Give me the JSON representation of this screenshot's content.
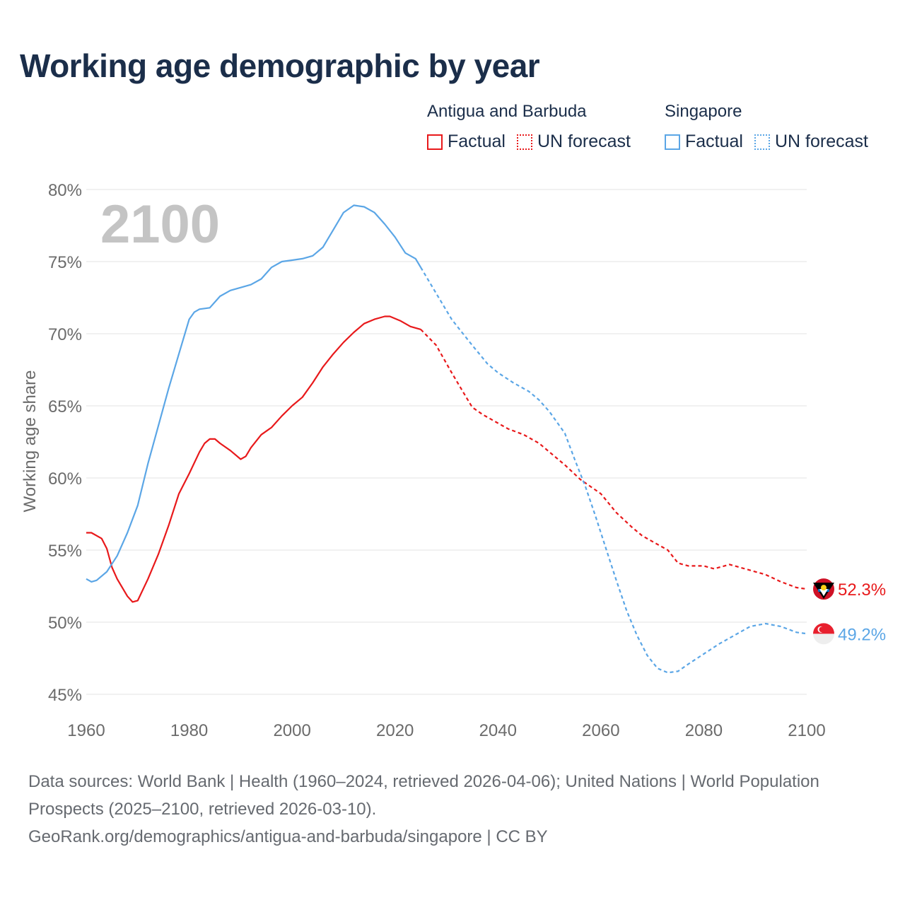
{
  "title": "Working age demographic by year",
  "legend": {
    "groups": [
      {
        "name": "Antigua and Barbuda",
        "factual_label": "Factual",
        "forecast_label": "UN forecast",
        "color": "#e8191b"
      },
      {
        "name": "Singapore",
        "factual_label": "Factual",
        "forecast_label": "UN forecast",
        "color": "#5ba6e6"
      }
    ]
  },
  "year_overlay": "2100",
  "footer": {
    "sources": "Data sources: World Bank | Health (1960–2024, retrieved 2026-04-06); United Nations | World Population Prospects (2025–2100, retrieved 2026-03-10).",
    "attribution": "GeoRank.org/demographics/antigua-and-barbuda/singapore | CC BY"
  },
  "chart_data": {
    "type": "line",
    "title": "Working age demographic by year",
    "xlabel": "",
    "ylabel": "Working age share",
    "xlim": [
      1960,
      2100
    ],
    "ylim": [
      45,
      80
    ],
    "x_ticks": [
      1960,
      1980,
      2000,
      2020,
      2040,
      2060,
      2080,
      2100
    ],
    "y_ticks": [
      45,
      50,
      55,
      60,
      65,
      70,
      75,
      80
    ],
    "y_tick_labels": [
      "45%",
      "50%",
      "55%",
      "60%",
      "65%",
      "70%",
      "75%",
      "80%"
    ],
    "grid": true,
    "factual_end_year": 2025,
    "series": [
      {
        "name": "Antigua and Barbuda",
        "color": "#e8191b",
        "end_label": "52.3%",
        "points": [
          [
            1960,
            56.2
          ],
          [
            1961,
            56.2
          ],
          [
            1963,
            55.8
          ],
          [
            1964,
            55.1
          ],
          [
            1965,
            53.8
          ],
          [
            1966,
            53.0
          ],
          [
            1968,
            51.8
          ],
          [
            1969,
            51.4
          ],
          [
            1970,
            51.5
          ],
          [
            1972,
            53.0
          ],
          [
            1974,
            54.7
          ],
          [
            1976,
            56.7
          ],
          [
            1978,
            58.9
          ],
          [
            1980,
            60.3
          ],
          [
            1982,
            61.8
          ],
          [
            1983,
            62.4
          ],
          [
            1984,
            62.7
          ],
          [
            1985,
            62.7
          ],
          [
            1986,
            62.4
          ],
          [
            1988,
            61.9
          ],
          [
            1990,
            61.3
          ],
          [
            1991,
            61.5
          ],
          [
            1992,
            62.1
          ],
          [
            1994,
            63.0
          ],
          [
            1996,
            63.5
          ],
          [
            1998,
            64.3
          ],
          [
            2000,
            65.0
          ],
          [
            2002,
            65.6
          ],
          [
            2004,
            66.6
          ],
          [
            2006,
            67.7
          ],
          [
            2008,
            68.6
          ],
          [
            2010,
            69.4
          ],
          [
            2012,
            70.1
          ],
          [
            2014,
            70.7
          ],
          [
            2016,
            71.0
          ],
          [
            2018,
            71.2
          ],
          [
            2019,
            71.2
          ],
          [
            2021,
            70.9
          ],
          [
            2023,
            70.5
          ],
          [
            2025,
            70.3
          ],
          [
            2028,
            69.2
          ],
          [
            2031,
            67.3
          ],
          [
            2033,
            66.1
          ],
          [
            2035,
            64.9
          ],
          [
            2037,
            64.4
          ],
          [
            2040,
            63.8
          ],
          [
            2042,
            63.4
          ],
          [
            2045,
            63.0
          ],
          [
            2048,
            62.4
          ],
          [
            2050,
            61.8
          ],
          [
            2053,
            60.9
          ],
          [
            2056,
            59.9
          ],
          [
            2060,
            58.9
          ],
          [
            2063,
            57.6
          ],
          [
            2066,
            56.6
          ],
          [
            2068,
            56.0
          ],
          [
            2070,
            55.6
          ],
          [
            2073,
            55.0
          ],
          [
            2075,
            54.1
          ],
          [
            2077,
            53.9
          ],
          [
            2080,
            53.9
          ],
          [
            2082,
            53.7
          ],
          [
            2085,
            54.0
          ],
          [
            2088,
            53.7
          ],
          [
            2092,
            53.3
          ],
          [
            2095,
            52.8
          ],
          [
            2098,
            52.4
          ],
          [
            2100,
            52.3
          ]
        ]
      },
      {
        "name": "Singapore",
        "color": "#5ba6e6",
        "end_label": "49.2%",
        "points": [
          [
            1960,
            53.0
          ],
          [
            1961,
            52.8
          ],
          [
            1962,
            52.9
          ],
          [
            1964,
            53.5
          ],
          [
            1966,
            54.6
          ],
          [
            1968,
            56.2
          ],
          [
            1970,
            58.1
          ],
          [
            1972,
            61.0
          ],
          [
            1974,
            63.6
          ],
          [
            1976,
            66.2
          ],
          [
            1978,
            68.6
          ],
          [
            1980,
            71.0
          ],
          [
            1981,
            71.5
          ],
          [
            1982,
            71.7
          ],
          [
            1984,
            71.8
          ],
          [
            1985,
            72.2
          ],
          [
            1986,
            72.6
          ],
          [
            1988,
            73.0
          ],
          [
            1990,
            73.2
          ],
          [
            1992,
            73.4
          ],
          [
            1994,
            73.8
          ],
          [
            1996,
            74.6
          ],
          [
            1998,
            75.0
          ],
          [
            2000,
            75.1
          ],
          [
            2002,
            75.2
          ],
          [
            2004,
            75.4
          ],
          [
            2006,
            76.0
          ],
          [
            2008,
            77.2
          ],
          [
            2010,
            78.4
          ],
          [
            2012,
            78.9
          ],
          [
            2014,
            78.8
          ],
          [
            2016,
            78.4
          ],
          [
            2018,
            77.6
          ],
          [
            2020,
            76.7
          ],
          [
            2022,
            75.6
          ],
          [
            2024,
            75.2
          ],
          [
            2025,
            74.6
          ],
          [
            2028,
            72.8
          ],
          [
            2031,
            71.0
          ],
          [
            2033,
            70.1
          ],
          [
            2035,
            69.2
          ],
          [
            2038,
            67.9
          ],
          [
            2040,
            67.3
          ],
          [
            2043,
            66.6
          ],
          [
            2046,
            66.0
          ],
          [
            2048,
            65.4
          ],
          [
            2050,
            64.6
          ],
          [
            2053,
            63.1
          ],
          [
            2055,
            61.2
          ],
          [
            2057,
            59.4
          ],
          [
            2059,
            57.3
          ],
          [
            2061,
            55.1
          ],
          [
            2063,
            52.9
          ],
          [
            2065,
            50.8
          ],
          [
            2067,
            49.1
          ],
          [
            2069,
            47.7
          ],
          [
            2071,
            46.8
          ],
          [
            2073,
            46.5
          ],
          [
            2075,
            46.6
          ],
          [
            2077,
            47.1
          ],
          [
            2080,
            47.8
          ],
          [
            2083,
            48.5
          ],
          [
            2086,
            49.1
          ],
          [
            2089,
            49.7
          ],
          [
            2092,
            49.9
          ],
          [
            2095,
            49.7
          ],
          [
            2098,
            49.3
          ],
          [
            2100,
            49.2
          ]
        ]
      }
    ]
  }
}
